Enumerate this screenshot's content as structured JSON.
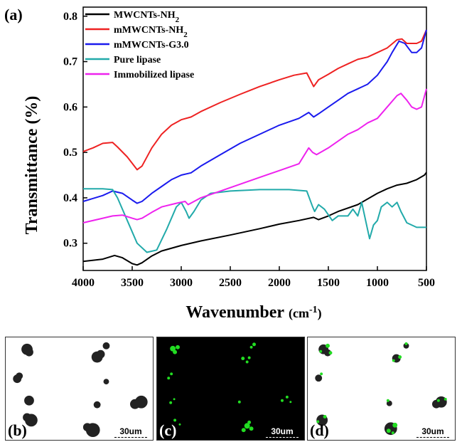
{
  "panel_label": "(a)",
  "chart_data": {
    "type": "line",
    "xlabel": "Wavenumber",
    "xlabel_unit": "(cm-1)",
    "ylabel": "Transmittance (%)",
    "xlim": [
      4000,
      500
    ],
    "ylim": [
      0.24,
      0.82
    ],
    "x_ticks": [
      4000,
      3500,
      3000,
      2500,
      2000,
      1500,
      1000,
      500
    ],
    "y_ticks": [
      0.3,
      0.4,
      0.5,
      0.6,
      0.7,
      0.8
    ],
    "legend_position": "top-left",
    "series": [
      {
        "name": "MWCNTs-NH2",
        "legend_main": "MWCNTs-NH",
        "legend_sub": "2",
        "color": "#000000",
        "points": [
          [
            4000,
            0.26
          ],
          [
            3800,
            0.265
          ],
          [
            3680,
            0.273
          ],
          [
            3600,
            0.268
          ],
          [
            3500,
            0.255
          ],
          [
            3450,
            0.252
          ],
          [
            3400,
            0.257
          ],
          [
            3300,
            0.272
          ],
          [
            3200,
            0.283
          ],
          [
            3000,
            0.295
          ],
          [
            2800,
            0.305
          ],
          [
            2500,
            0.318
          ],
          [
            2200,
            0.332
          ],
          [
            2000,
            0.342
          ],
          [
            1800,
            0.35
          ],
          [
            1650,
            0.357
          ],
          [
            1600,
            0.352
          ],
          [
            1500,
            0.36
          ],
          [
            1400,
            0.37
          ],
          [
            1200,
            0.385
          ],
          [
            1000,
            0.41
          ],
          [
            900,
            0.42
          ],
          [
            800,
            0.428
          ],
          [
            700,
            0.432
          ],
          [
            600,
            0.44
          ],
          [
            520,
            0.45
          ],
          [
            500,
            0.456
          ]
        ]
      },
      {
        "name": "mMWCNTs-NH2",
        "legend_main": "mMWCNTs-NH",
        "legend_sub": "2",
        "color": "#ee2222",
        "points": [
          [
            4000,
            0.502
          ],
          [
            3900,
            0.51
          ],
          [
            3800,
            0.52
          ],
          [
            3700,
            0.522
          ],
          [
            3650,
            0.512
          ],
          [
            3550,
            0.49
          ],
          [
            3450,
            0.462
          ],
          [
            3400,
            0.47
          ],
          [
            3300,
            0.51
          ],
          [
            3200,
            0.54
          ],
          [
            3100,
            0.56
          ],
          [
            3000,
            0.572
          ],
          [
            2900,
            0.578
          ],
          [
            2800,
            0.59
          ],
          [
            2600,
            0.61
          ],
          [
            2400,
            0.628
          ],
          [
            2200,
            0.645
          ],
          [
            2000,
            0.66
          ],
          [
            1850,
            0.67
          ],
          [
            1720,
            0.675
          ],
          [
            1650,
            0.645
          ],
          [
            1600,
            0.66
          ],
          [
            1500,
            0.672
          ],
          [
            1400,
            0.685
          ],
          [
            1300,
            0.695
          ],
          [
            1200,
            0.705
          ],
          [
            1100,
            0.71
          ],
          [
            1000,
            0.72
          ],
          [
            900,
            0.73
          ],
          [
            800,
            0.748
          ],
          [
            750,
            0.75
          ],
          [
            700,
            0.74
          ],
          [
            600,
            0.74
          ],
          [
            550,
            0.745
          ],
          [
            500,
            0.77
          ]
        ]
      },
      {
        "name": "mMWCNTs-G3.0",
        "legend_main": "mMWCNTs-G3.0",
        "legend_sub": "",
        "color": "#1a1aee",
        "points": [
          [
            4000,
            0.392
          ],
          [
            3800,
            0.405
          ],
          [
            3700,
            0.415
          ],
          [
            3600,
            0.41
          ],
          [
            3500,
            0.395
          ],
          [
            3450,
            0.388
          ],
          [
            3400,
            0.392
          ],
          [
            3300,
            0.41
          ],
          [
            3200,
            0.425
          ],
          [
            3100,
            0.44
          ],
          [
            3000,
            0.45
          ],
          [
            2900,
            0.455
          ],
          [
            2800,
            0.47
          ],
          [
            2600,
            0.495
          ],
          [
            2400,
            0.52
          ],
          [
            2200,
            0.54
          ],
          [
            2000,
            0.56
          ],
          [
            1800,
            0.575
          ],
          [
            1700,
            0.588
          ],
          [
            1650,
            0.578
          ],
          [
            1600,
            0.585
          ],
          [
            1500,
            0.6
          ],
          [
            1400,
            0.615
          ],
          [
            1300,
            0.63
          ],
          [
            1200,
            0.64
          ],
          [
            1100,
            0.65
          ],
          [
            1000,
            0.67
          ],
          [
            950,
            0.685
          ],
          [
            900,
            0.7
          ],
          [
            850,
            0.72
          ],
          [
            780,
            0.745
          ],
          [
            720,
            0.74
          ],
          [
            650,
            0.72
          ],
          [
            600,
            0.72
          ],
          [
            550,
            0.73
          ],
          [
            500,
            0.77
          ]
        ]
      },
      {
        "name": "Pure lipase",
        "legend_main": "Pure lipase",
        "legend_sub": "",
        "color": "#22aaaa",
        "points": [
          [
            4000,
            0.42
          ],
          [
            3800,
            0.42
          ],
          [
            3700,
            0.418
          ],
          [
            3650,
            0.4
          ],
          [
            3550,
            0.35
          ],
          [
            3450,
            0.3
          ],
          [
            3350,
            0.28
          ],
          [
            3250,
            0.285
          ],
          [
            3150,
            0.33
          ],
          [
            3050,
            0.38
          ],
          [
            3000,
            0.39
          ],
          [
            2950,
            0.37
          ],
          [
            2920,
            0.355
          ],
          [
            2870,
            0.37
          ],
          [
            2800,
            0.395
          ],
          [
            2700,
            0.41
          ],
          [
            2500,
            0.415
          ],
          [
            2200,
            0.418
          ],
          [
            1900,
            0.418
          ],
          [
            1720,
            0.415
          ],
          [
            1660,
            0.38
          ],
          [
            1640,
            0.37
          ],
          [
            1600,
            0.385
          ],
          [
            1540,
            0.375
          ],
          [
            1460,
            0.35
          ],
          [
            1400,
            0.36
          ],
          [
            1300,
            0.36
          ],
          [
            1250,
            0.375
          ],
          [
            1200,
            0.36
          ],
          [
            1160,
            0.39
          ],
          [
            1100,
            0.33
          ],
          [
            1080,
            0.31
          ],
          [
            1040,
            0.34
          ],
          [
            1000,
            0.35
          ],
          [
            960,
            0.38
          ],
          [
            900,
            0.39
          ],
          [
            850,
            0.38
          ],
          [
            800,
            0.39
          ],
          [
            760,
            0.37
          ],
          [
            700,
            0.345
          ],
          [
            600,
            0.335
          ],
          [
            500,
            0.335
          ]
        ]
      },
      {
        "name": "Immobilized lipase",
        "legend_main": "Immobilized lipase",
        "legend_sub": "",
        "color": "#ee22ee",
        "points": [
          [
            4000,
            0.345
          ],
          [
            3800,
            0.355
          ],
          [
            3700,
            0.36
          ],
          [
            3600,
            0.362
          ],
          [
            3500,
            0.355
          ],
          [
            3450,
            0.352
          ],
          [
            3400,
            0.355
          ],
          [
            3300,
            0.368
          ],
          [
            3200,
            0.38
          ],
          [
            3050,
            0.388
          ],
          [
            2960,
            0.392
          ],
          [
            2930,
            0.385
          ],
          [
            2800,
            0.4
          ],
          [
            2600,
            0.415
          ],
          [
            2400,
            0.43
          ],
          [
            2200,
            0.445
          ],
          [
            2000,
            0.46
          ],
          [
            1800,
            0.475
          ],
          [
            1700,
            0.51
          ],
          [
            1660,
            0.5
          ],
          [
            1620,
            0.495
          ],
          [
            1500,
            0.51
          ],
          [
            1400,
            0.525
          ],
          [
            1300,
            0.54
          ],
          [
            1200,
            0.55
          ],
          [
            1100,
            0.565
          ],
          [
            1000,
            0.575
          ],
          [
            900,
            0.6
          ],
          [
            800,
            0.625
          ],
          [
            760,
            0.63
          ],
          [
            700,
            0.615
          ],
          [
            650,
            0.6
          ],
          [
            600,
            0.595
          ],
          [
            550,
            0.6
          ],
          [
            500,
            0.64
          ]
        ]
      }
    ]
  },
  "micrographs": [
    {
      "tag": "(b)",
      "scale": "30um",
      "background": "#ffffff",
      "scale_color": "#000000"
    },
    {
      "tag": "(c)",
      "scale": "30um",
      "background": "#000000",
      "scale_color": "#ffffff"
    },
    {
      "tag": "(d)",
      "scale": "30um",
      "background": "#ffffff",
      "scale_color": "#000000"
    }
  ]
}
